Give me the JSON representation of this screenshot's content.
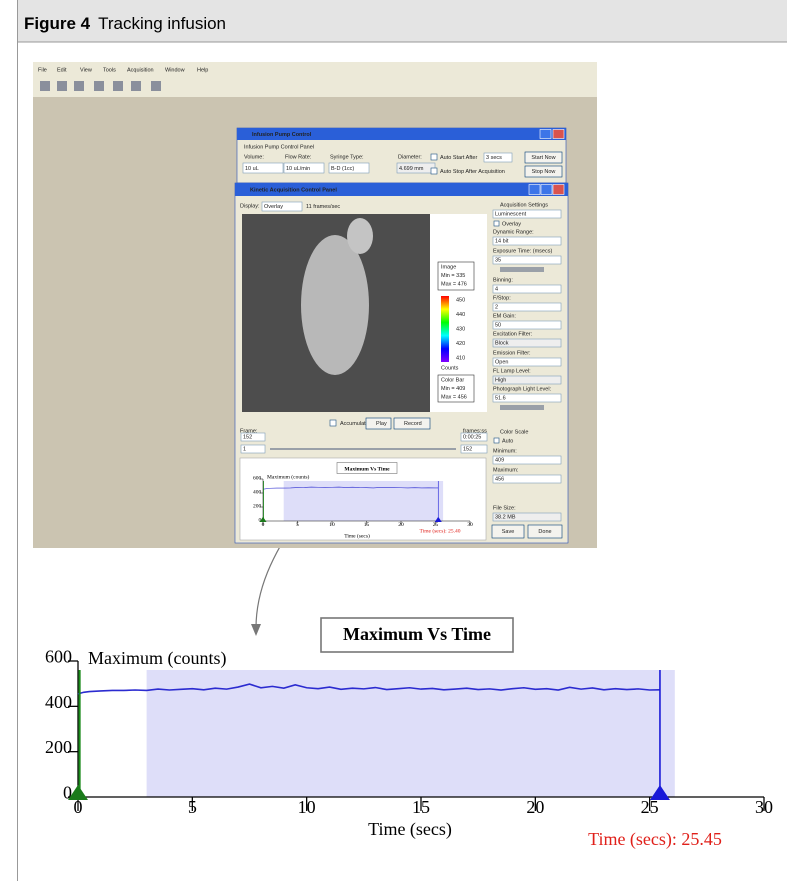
{
  "figure": {
    "label": "Figure 4",
    "title": "Tracking infusion"
  },
  "screenshot": {
    "menu": [
      "File",
      "Edit",
      "View",
      "Tools",
      "Acquisition",
      "Window",
      "Help"
    ],
    "pump": {
      "title": "Infusion Pump Control",
      "panel": "Infusion Pump Control Panel",
      "labels": [
        "Volume:",
        "Flow Rate:",
        "Syringe Type:",
        "Diameter:"
      ],
      "inputs": [
        "10 uL",
        "10 uL/min",
        "B-D (1cc)",
        "4.699 mm"
      ],
      "auto_start": "Auto Start After",
      "delay": "3 secs",
      "start": "Start Now",
      "auto_stop": "Auto Stop After Acquisition",
      "stop": "Stop Now"
    },
    "kinetic": {
      "title": "Kinetic Acquisition Control Panel",
      "display_label": "Display:",
      "display": "Overlay",
      "rate": "11 frames/sec",
      "image_box": [
        "Image",
        "Min = 335",
        "Max = 476"
      ],
      "colorbar_ticks": [
        "450",
        "440",
        "430",
        "420",
        "410"
      ],
      "counts": "Counts",
      "colorbar_box": [
        "Color Bar",
        "Min = 409",
        "Max = 456"
      ],
      "settings": [
        "Acquisition Settings",
        "Luminescent",
        "Overlay",
        "Dynamic Range:",
        "14 bit",
        "Exposure Time: (msecs)",
        "35",
        "Binning:",
        "4",
        "F/Stop:",
        "2",
        "EM Gain:",
        "50",
        "Excitation Filter:",
        "Block",
        "Emission Filter:",
        "Open",
        "FL Lamp Level:",
        "High",
        "Photograph Light Level:",
        "51.6"
      ],
      "accumulate": "Accumulate",
      "play": "Play",
      "record": "Record",
      "frame": "Frame:",
      "frames_ss": "frames:ss",
      "frame_value": "152",
      "time": "0:00:25",
      "start_frame": "1",
      "end_frame": "152",
      "color_scale": "Color Scale",
      "auto": "Auto",
      "minimum": "Minimum:",
      "min_value": "409",
      "maximum": "Maximum:",
      "max_value": "456",
      "file_size": "File Size:",
      "file_size_value": "38.2 MB",
      "save": "Save",
      "done": "Done"
    }
  },
  "chart_data": [
    {
      "type": "line",
      "title": "Maximum Vs Time",
      "y_label": "Maximum (counts)",
      "x_label": "Time (secs)",
      "annotation": "Time (secs): 25.45",
      "xlim": [
        0,
        30
      ],
      "xticks": [
        0,
        5,
        10,
        15,
        20,
        25,
        30
      ],
      "ylim": [
        0,
        600
      ],
      "yticks": [
        0,
        200,
        400,
        600
      ],
      "shaded_range": [
        3,
        26.1
      ],
      "cursor": 25.45,
      "series": [
        {
          "color": "#2b2bd0",
          "x": [
            0,
            0.25,
            0.5,
            1,
            1.5,
            2,
            2.5,
            3,
            3.5,
            4,
            4.5,
            5,
            5.5,
            6,
            6.5,
            7,
            7.5,
            8,
            8.5,
            9,
            9.5,
            10,
            10.5,
            11,
            11.5,
            12,
            12.5,
            13,
            13.5,
            14,
            14.5,
            15,
            15.5,
            16,
            16.5,
            17,
            17.5,
            18,
            18.5,
            19,
            19.5,
            20,
            20.5,
            21,
            21.5,
            22,
            22.5,
            23,
            23.5,
            24,
            24.5,
            25,
            25.45
          ],
          "values": [
            455,
            462,
            465,
            468,
            470,
            470,
            472,
            470,
            476,
            472,
            475,
            478,
            473,
            480,
            476,
            485,
            498,
            482,
            488,
            480,
            495,
            482,
            478,
            485,
            475,
            480,
            477,
            483,
            474,
            478,
            482,
            476,
            479,
            473,
            476,
            480,
            474,
            477,
            472,
            478,
            482,
            475,
            478,
            472,
            484,
            476,
            481,
            473,
            478,
            474,
            477,
            472,
            473
          ]
        }
      ]
    },
    {
      "type": "line",
      "title": "Maximum Vs Time",
      "y_label": "Maximum (counts)",
      "x_label": "Time (secs)",
      "annotation": "Time (secs): 25.40",
      "xlim": [
        0,
        30
      ],
      "xticks": [
        0,
        5,
        10,
        15,
        20,
        25,
        30
      ],
      "ylim": [
        0,
        600
      ],
      "yticks": [
        0,
        200,
        400,
        600
      ],
      "shaded_range": [
        3,
        26.1
      ],
      "cursor": 25.4,
      "series": [
        {
          "color": "#2b2bd0",
          "x": [
            0,
            1,
            2,
            3,
            4,
            5,
            6,
            7,
            8,
            9,
            10,
            11,
            12,
            13,
            14,
            15,
            16,
            17,
            18,
            19,
            20,
            21,
            22,
            23,
            24,
            25,
            25.4
          ],
          "values": [
            455,
            468,
            470,
            470,
            472,
            478,
            480,
            485,
            482,
            480,
            482,
            485,
            480,
            483,
            478,
            476,
            473,
            480,
            477,
            478,
            475,
            472,
            476,
            473,
            474,
            472,
            473
          ]
        }
      ]
    }
  ]
}
